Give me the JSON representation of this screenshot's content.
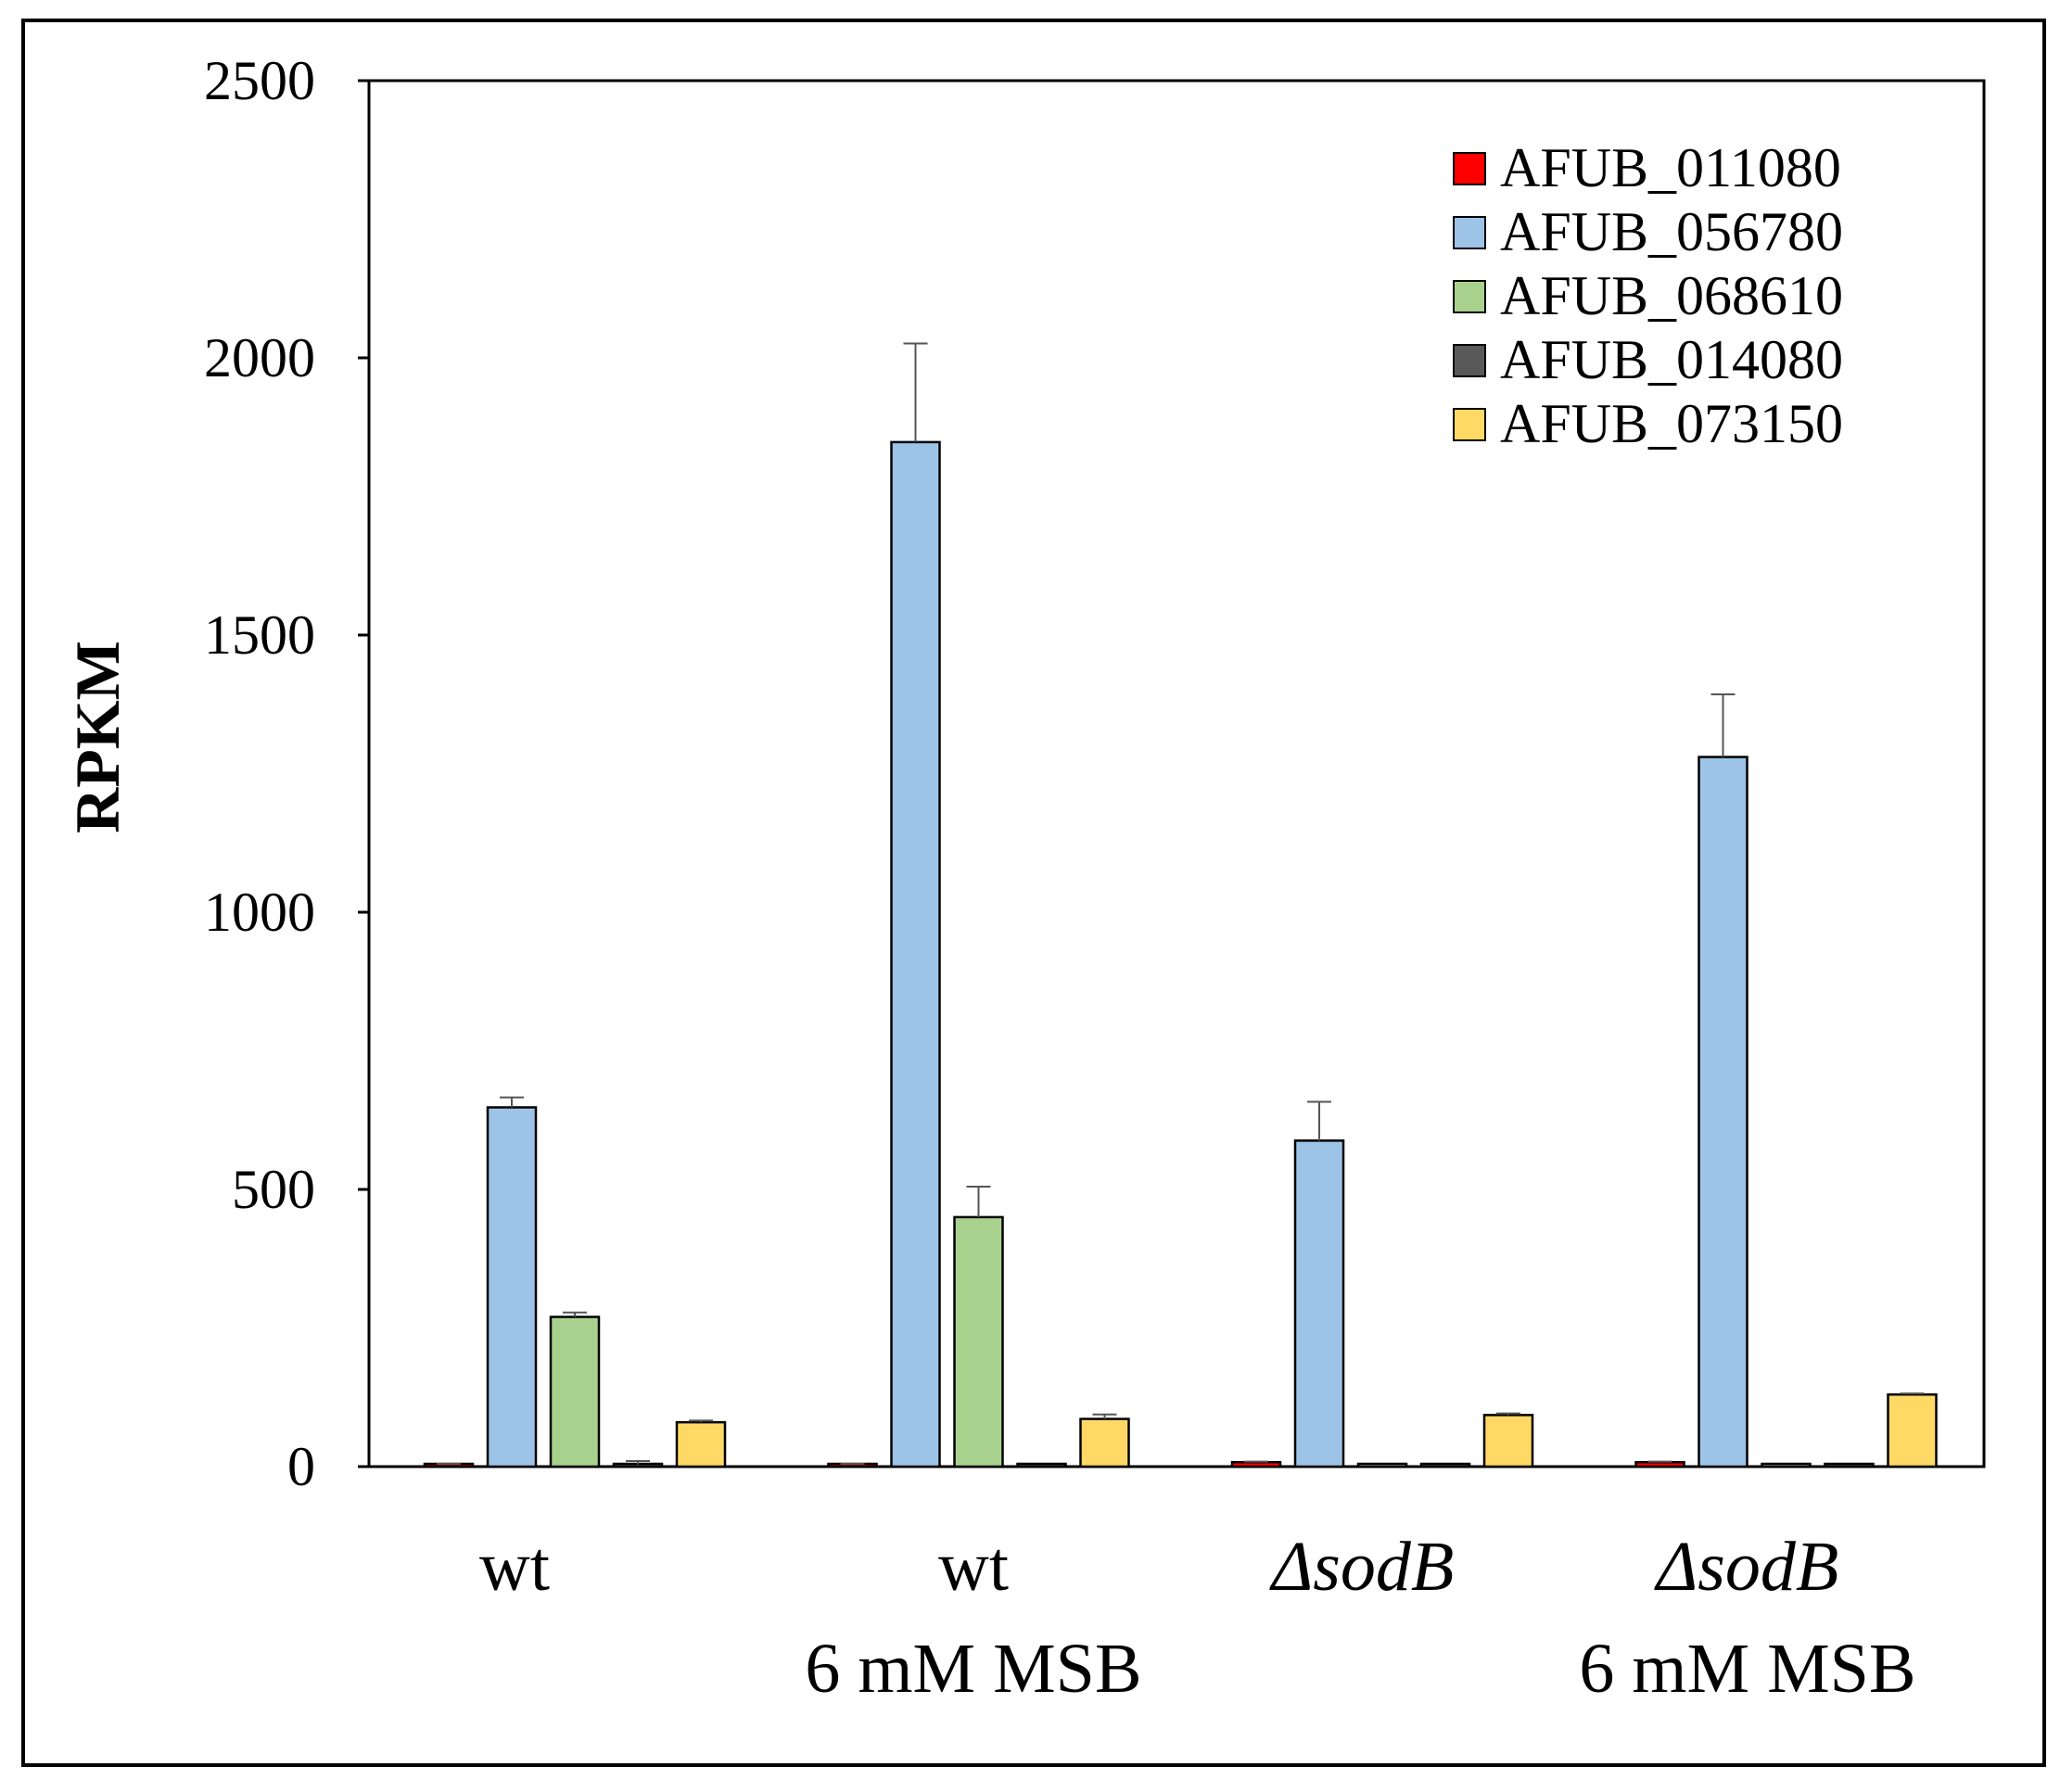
{
  "chart_data": {
    "type": "bar",
    "ylabel": "RPKM",
    "ylim": [
      0,
      2500
    ],
    "yticks": [
      "0",
      "500",
      "1000",
      "1500",
      "2000",
      "2500"
    ],
    "grid": false,
    "legend_position": "top-right",
    "categories": [
      {
        "line1": "wt",
        "line2": "",
        "italic": false
      },
      {
        "line1": "wt",
        "line2": "6 mM MSB",
        "italic": false
      },
      {
        "line1": "ΔsodB",
        "line2": "",
        "italic": true
      },
      {
        "line1": "ΔsodB",
        "line2": "6 mM MSB",
        "italic": true
      }
    ],
    "series": [
      {
        "name": "AFUB_011080",
        "color": "#ff0000",
        "values": [
          3,
          3,
          8,
          8
        ],
        "errors": [
          2,
          2,
          1,
          1
        ]
      },
      {
        "name": "AFUB_056780",
        "color": "#9dc3e6",
        "values": [
          648,
          1848,
          588,
          1280
        ],
        "errors": [
          18,
          178,
          70,
          113
        ]
      },
      {
        "name": "AFUB_068610",
        "color": "#a9d18e",
        "values": [
          270,
          450,
          2,
          2
        ],
        "errors": [
          8,
          55,
          0,
          0
        ]
      },
      {
        "name": "AFUB_014080",
        "color": "#595959",
        "values": [
          4,
          2,
          2,
          2
        ],
        "errors": [
          6,
          0,
          0,
          0
        ]
      },
      {
        "name": "AFUB_073150",
        "color": "#ffd966",
        "values": [
          80,
          86,
          93,
          130
        ],
        "errors": [
          3,
          8,
          3,
          2
        ]
      }
    ]
  }
}
